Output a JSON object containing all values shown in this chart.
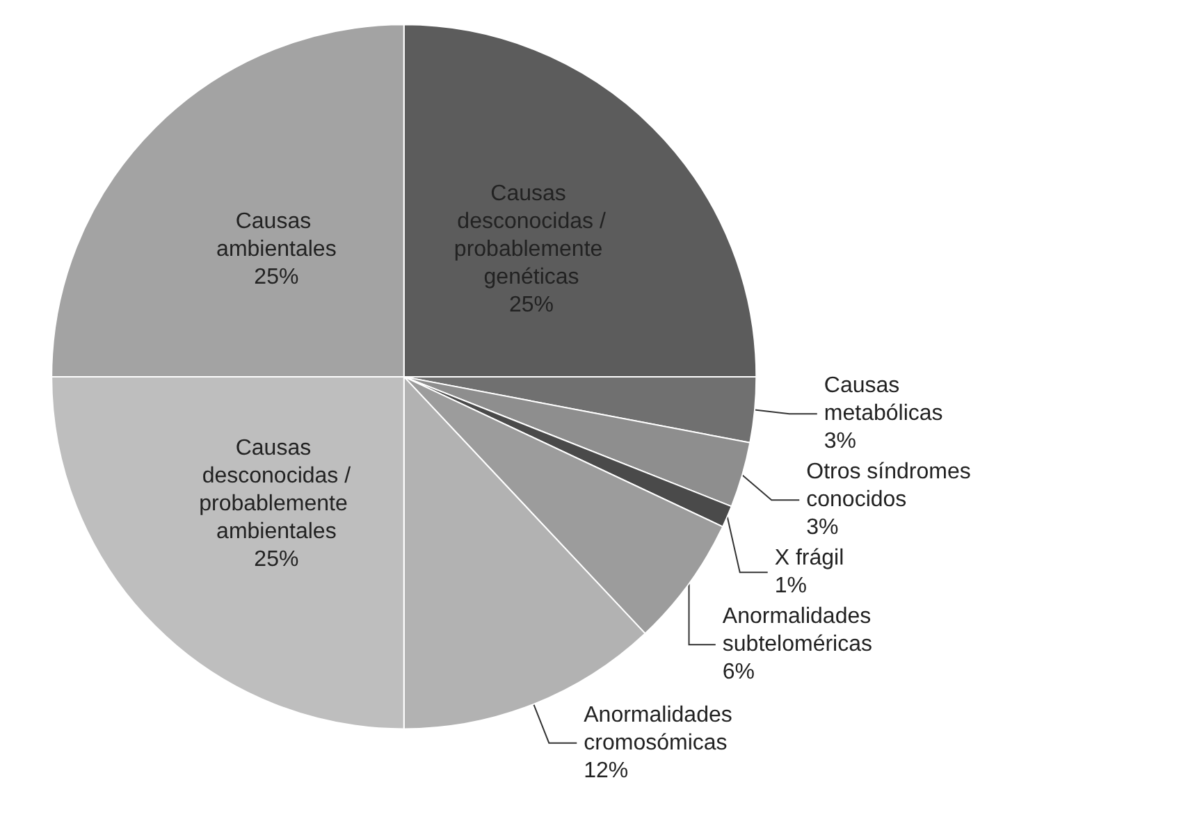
{
  "chart_data": {
    "type": "pie",
    "categories": [
      "Causas desconocidas /probablemente genéticas",
      "Causas metabólicas",
      "Otros síndromes conocidos",
      "X frágil",
      "Anormalidades subteloméricas",
      "Anormalidades cromosómicas",
      "Causas desconocidas /probablemente ambientales",
      "Causas ambientales"
    ],
    "values": [
      25,
      3,
      3,
      1,
      6,
      12,
      25,
      25
    ],
    "colors": [
      "#5c5c5c",
      "#707070",
      "#8e8e8e",
      "#4a4a4a",
      "#9c9c9c",
      "#b2b2b2",
      "#bebebe",
      "#a3a3a3"
    ],
    "value_labels": [
      "25%",
      "3%",
      "3%",
      "1%",
      "6%",
      "12%",
      "25%",
      "25%"
    ]
  }
}
